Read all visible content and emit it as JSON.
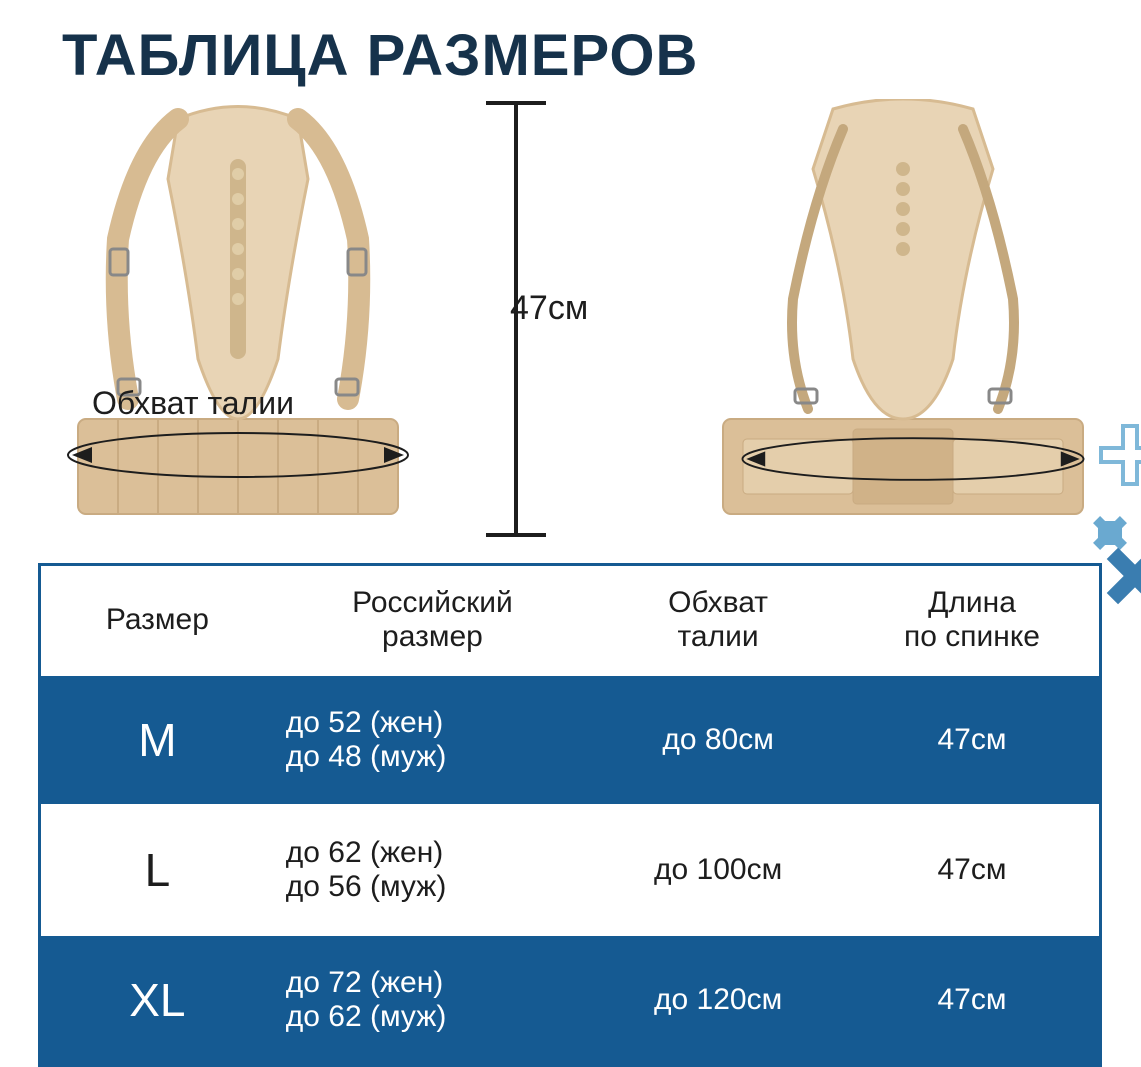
{
  "title": "ТАБЛИЦА РАЗМЕРОВ",
  "title_color": "#16324b",
  "title_fontsize": 58,
  "product_color": "#dcc09a",
  "product_mesh_color": "#e8d4b5",
  "product_strap_color": "#d7bb92",
  "ruler": {
    "label": "47см",
    "label_fontsize": 34,
    "line_color": "#1d1d1d"
  },
  "waist_label": "Обхват талии",
  "waist_label_fontsize": 32,
  "ellipse_stroke": "#1d1d1d",
  "table": {
    "border_color": "#155a92",
    "dark_row_bg": "#155a92",
    "light_row_bg": "#ffffff",
    "text_color": "#1d1d1d",
    "header_fontsize": 30,
    "cell_fontsize": 30,
    "size_fontsize": 46,
    "columns": [
      "Размер",
      "Российский\nразмер",
      "Обхват\nталии",
      "Длина\nпо спинке"
    ],
    "rows": [
      {
        "size": "M",
        "ru_f": "до 52 (жен)",
        "ru_m": "до 48 (муж)",
        "waist": "до 80см",
        "back": "47см",
        "shade": "dark"
      },
      {
        "size": "L",
        "ru_f": "до 62 (жен)",
        "ru_m": "до 56 (муж)",
        "waist": "до 100см",
        "back": "47см",
        "shade": "light"
      },
      {
        "size": "XL",
        "ru_f": "до 72 (жен)",
        "ru_m": "до 62 (муж)",
        "waist": "до 120см",
        "back": "47см",
        "shade": "dark"
      }
    ]
  },
  "decor": {
    "outline_color": "#7fb8d9",
    "fill_color_light": "#6aa9d0",
    "fill_color_dark": "#3a7db0"
  }
}
